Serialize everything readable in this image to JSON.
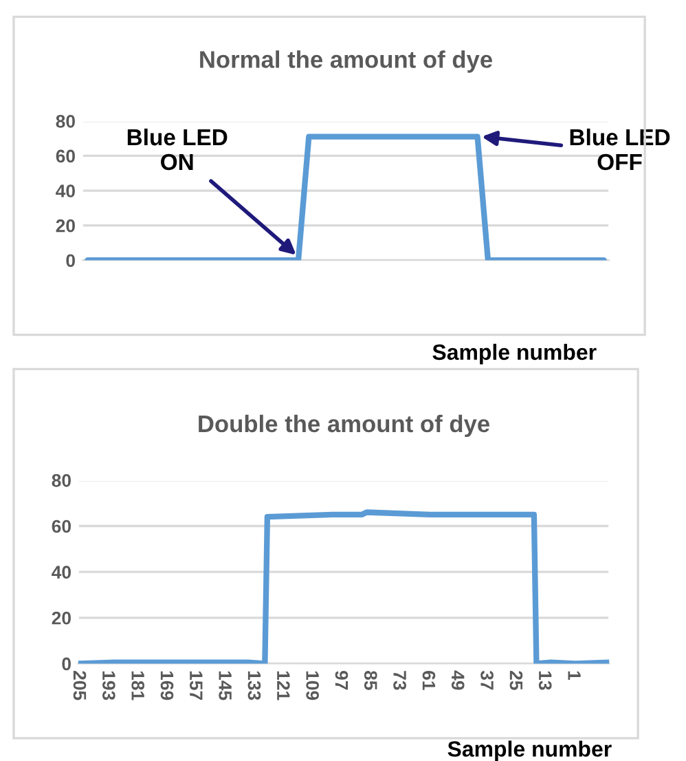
{
  "chart_data": [
    {
      "type": "line",
      "title": "Normal the amount of dye",
      "xlabel": "Sample number",
      "categories": [
        null,
        null,
        null,
        null,
        null,
        null,
        null,
        null,
        null,
        null,
        null,
        null,
        null,
        null,
        null,
        null,
        null,
        null,
        null,
        null,
        null,
        null,
        null,
        null,
        null,
        null,
        null,
        null,
        null,
        null,
        null,
        null,
        null,
        null,
        null,
        null,
        null,
        null,
        null,
        null,
        null,
        null,
        null,
        null,
        null,
        null,
        null,
        null,
        null,
        null
      ],
      "series": [
        {
          "color": "#5b9bd5",
          "values": [
            0,
            0,
            0,
            0,
            0,
            0,
            0,
            0,
            0,
            0,
            0,
            0,
            0,
            0,
            0,
            0,
            0,
            0,
            0,
            0,
            0,
            71,
            71,
            71,
            71,
            71,
            71,
            71,
            71,
            71,
            71,
            71,
            71,
            71,
            71,
            71,
            71,
            71,
            0,
            0,
            0,
            0,
            0,
            0,
            0,
            0,
            0,
            0,
            0,
            0
          ]
        }
      ],
      "ylim": [
        0,
        80
      ],
      "yticks": [
        0,
        20,
        40,
        60,
        80
      ],
      "grid": "y",
      "tick_labels": "y",
      "annotations": [
        "Blue LED\nON",
        "Blue LED\nOFF"
      ]
    },
    {
      "type": "line",
      "title": "Double the amount of dye",
      "xlabel": "Sample number",
      "series": [
        {
          "color": "#5b9bd5",
          "x": [
            205,
            190,
            170,
            150,
            135,
            128,
            127,
            100,
            88,
            86,
            60,
            17,
            16,
            10,
            0,
            -14
          ],
          "values": [
            0,
            0.5,
            0.5,
            0.5,
            0.5,
            0,
            64,
            65,
            65,
            66,
            65,
            65,
            0,
            0.5,
            0,
            0.5
          ]
        }
      ],
      "xlim": [
        205,
        -14
      ],
      "xticks": [
        205,
        193,
        181,
        169,
        157,
        145,
        133,
        121,
        109,
        97,
        85,
        73,
        61,
        49,
        37,
        25,
        13,
        1
      ],
      "ylim": [
        0,
        80
      ],
      "yticks": [
        0,
        20,
        40,
        60,
        80
      ],
      "grid": "y"
    }
  ]
}
